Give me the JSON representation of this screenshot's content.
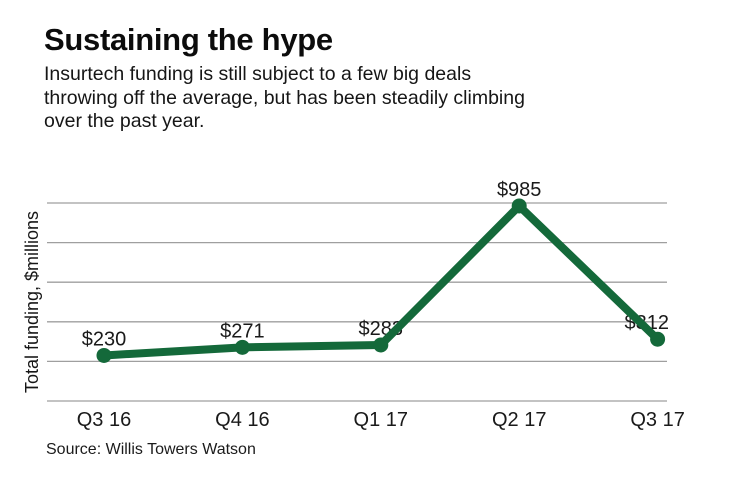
{
  "header": {
    "title": "Sustaining the hype",
    "subtitle_lines": [
      "Insurtech funding is still subject to a few big deals",
      "throwing off the average, but has been steadily climbing",
      "over the past year."
    ]
  },
  "chart_data": {
    "type": "line",
    "title": "Sustaining the hype",
    "categories": [
      "Q3 16",
      "Q4 16",
      "Q1 17",
      "Q2 17",
      "Q3 17"
    ],
    "values": [
      230,
      271,
      283,
      985,
      312
    ],
    "point_labels": [
      "$230",
      "$271",
      "$283",
      "$985",
      "$312"
    ],
    "xlabel": "",
    "ylabel": "Total funding, $millions",
    "ylim": [
      0,
      1000
    ],
    "grid_step": 200,
    "grid": "horizontal gridlines only, no y tick labels",
    "legend": "none",
    "line_color": "#14693a",
    "grid_color": "#9f9f9f",
    "text_color": "#1a1a1a"
  },
  "footer": {
    "source": "Source: Willis Towers Watson"
  }
}
